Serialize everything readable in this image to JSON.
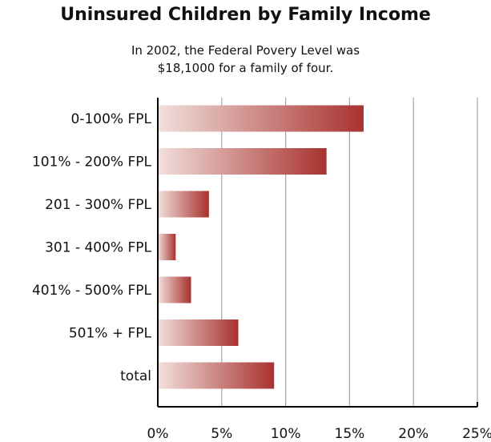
{
  "chart_data": {
    "type": "bar",
    "orientation": "horizontal",
    "title": "Uninsured Children by Family Income",
    "subtitle_lines": [
      "In 2002, the Federal Povery Level was",
      "$18,1000 for a family of four."
    ],
    "categories": [
      "0-100% FPL",
      "101% - 200% FPL",
      "201 - 300% FPL",
      "301 - 400% FPL",
      "401% - 500% FPL",
      "501% + FPL",
      "total"
    ],
    "values": [
      16.1,
      13.2,
      4.0,
      1.4,
      2.6,
      6.3,
      9.1
    ],
    "xlim": [
      0,
      25
    ],
    "xticks": [
      0,
      5,
      10,
      15,
      20,
      25
    ],
    "xtick_labels": [
      "0%",
      "5%",
      "10%",
      "15%",
      "20%",
      "25%"
    ],
    "grid": "vertical",
    "bar_color_start": "#f2e0dc",
    "bar_color_end": "#a8322f",
    "grid_color": "#a6a6a6"
  }
}
